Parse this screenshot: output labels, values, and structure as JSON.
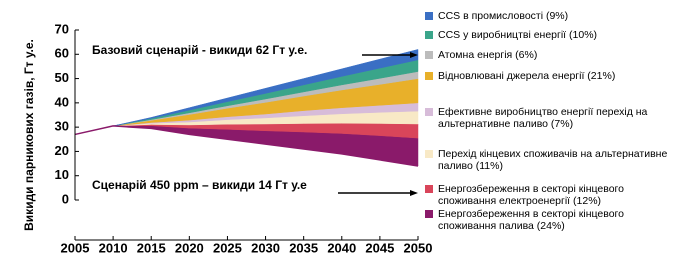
{
  "chart_data": {
    "type": "stacked_area",
    "y_label": "Викиди парникових газів, Гт у.е.",
    "annotations": [
      "Базовий сценарій - викиди 62 Гт у.е.",
      "Сценарій 450 ppm – викиди 14 Гт у.е"
    ],
    "x": [
      2005,
      2010,
      2015,
      2020,
      2025,
      2030,
      2035,
      2040,
      2045,
      2050
    ],
    "base": [
      27,
      30.5,
      29.5,
      27,
      25,
      23,
      21,
      19,
      16.5,
      14
    ],
    "series": [
      {
        "name": "CCS в промисловості (9%)",
        "color": "#3a6fc4",
        "values": [
          0,
          0,
          0.4,
          1.0,
          1.5,
          2.1,
          2.6,
          3.1,
          3.7,
          4.3
        ]
      },
      {
        "name": "CCS у виробництві енергії (10%)",
        "color": "#3aa58a",
        "values": [
          0,
          0,
          0.5,
          1.1,
          1.7,
          2.3,
          2.9,
          3.5,
          4.2,
          4.8
        ]
      },
      {
        "name": "Атомна енергія (6%)",
        "color": "#bcbcbc",
        "values": [
          0,
          0,
          0.3,
          0.7,
          1.0,
          1.4,
          1.7,
          2.1,
          2.5,
          2.9
        ]
      },
      {
        "name": "Відновлювані джерела енергії (21%)",
        "color": "#e8b02a",
        "values": [
          0,
          0,
          0.9,
          2.3,
          3.5,
          4.8,
          6.0,
          7.3,
          8.6,
          10.0
        ]
      },
      {
        "name": "Ефективне виробництво енергії перехід на альтернативне паливо (7%)",
        "color": "#d7bcd9",
        "values": [
          0,
          0,
          0.3,
          0.8,
          1.2,
          1.6,
          2.1,
          2.5,
          2.9,
          3.4
        ]
      },
      {
        "name": "Перехід кінцевих споживачів на альтернативне паливо (11%)",
        "color": "#f8e9c6",
        "values": [
          0,
          0,
          0.5,
          1.2,
          1.9,
          2.5,
          3.2,
          3.9,
          4.6,
          5.3
        ]
      },
      {
        "name": "Енергозбереження в секторі кінцевого споживання електроенергії (12%)",
        "color": "#d9455a",
        "values": [
          0,
          0,
          0.5,
          1.3,
          2.1,
          2.8,
          3.5,
          4.2,
          5.0,
          5.8
        ]
      },
      {
        "name": "Енергозбереження в секторі кінцевого споживання палива (24%)",
        "color": "#8a1a6a",
        "values": [
          0,
          0,
          1.1,
          2.6,
          4.1,
          5.5,
          7.0,
          8.4,
          10.0,
          11.5
        ]
      }
    ],
    "xlim": [
      2005,
      2050
    ],
    "xticks": [
      2005,
      2010,
      2015,
      2020,
      2025,
      2030,
      2035,
      2040,
      2045,
      2050
    ],
    "ylim": [
      0,
      70
    ],
    "yticks": [
      0,
      10,
      20,
      30,
      40,
      50,
      60,
      70
    ]
  }
}
